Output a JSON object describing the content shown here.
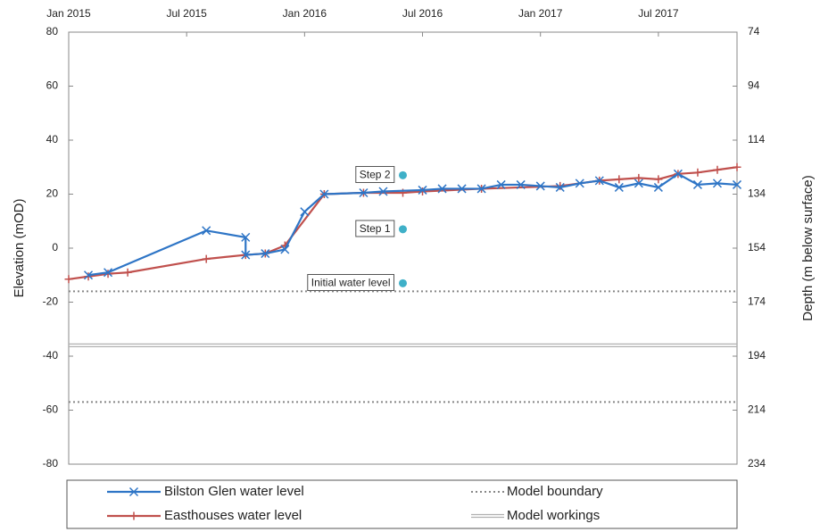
{
  "chart_data": {
    "type": "line",
    "y_label": "Elevation (mOD)",
    "y2_label": "Depth (m below surface)",
    "xlim": [
      "2015-01",
      "2017-11"
    ],
    "xticks": [
      {
        "value": "2015-01",
        "label": "Jan 2015"
      },
      {
        "value": "2015-07",
        "label": "Jul 2015"
      },
      {
        "value": "2016-01",
        "label": "Jan 2016"
      },
      {
        "value": "2016-07",
        "label": "Jul 2016"
      },
      {
        "value": "2017-01",
        "label": "Jan 2017"
      },
      {
        "value": "2017-07",
        "label": "Jul 2017"
      }
    ],
    "ylim": [
      -80,
      80
    ],
    "yticks": [
      -80,
      -60,
      -40,
      -20,
      0,
      20,
      40,
      60,
      80
    ],
    "y2lim": [
      234,
      74
    ],
    "y2ticks": [
      74,
      94,
      114,
      134,
      154,
      174,
      194,
      214,
      234
    ],
    "grid": false,
    "series": [
      {
        "name": "Easthouses water level",
        "color": "#c0504d",
        "marker": "plus",
        "x": [
          "2015-01",
          "2015-02",
          "2015-03",
          "2015-04",
          "2015-08",
          "2015-10",
          "2015-11",
          "2015-12",
          "2016-02",
          "2016-04",
          "2016-06",
          "2016-07",
          "2016-10",
          "2017-02",
          "2017-04",
          "2017-05",
          "2017-06",
          "2017-07",
          "2017-08",
          "2017-09",
          "2017-10",
          "2017-11"
        ],
        "values": [
          -11.5,
          -10.5,
          -9.5,
          -9,
          -4,
          -2.5,
          -2,
          1,
          20,
          20.5,
          20.5,
          21,
          22,
          23,
          25,
          25.5,
          26,
          25.5,
          27.5,
          28,
          29,
          30
        ]
      },
      {
        "name": "Bilston Glen water level",
        "color": "#2e75c6",
        "marker": "cross",
        "x": [
          "2015-02",
          "2015-03",
          "2015-08",
          "2015-10",
          "2015-10",
          "2015-11",
          "2015-12",
          "2016-01",
          "2016-02",
          "2016-04",
          "2016-05",
          "2016-07",
          "2016-08",
          "2016-09",
          "2016-10",
          "2016-11",
          "2016-12",
          "2017-01",
          "2017-02",
          "2017-03",
          "2017-04",
          "2017-05",
          "2017-06",
          "2017-07",
          "2017-08",
          "2017-09",
          "2017-10",
          "2017-11"
        ],
        "values": [
          -10,
          -9,
          6.5,
          4,
          -2.5,
          -2,
          -0.5,
          13.5,
          20,
          20.5,
          21,
          21.5,
          22,
          22,
          22,
          23.5,
          23.5,
          23,
          22.5,
          24,
          25,
          22.5,
          24,
          22.5,
          27.5,
          23.5,
          24,
          23.5
        ]
      }
    ],
    "reference_lines": [
      {
        "name": "Model boundary",
        "color": "#888888",
        "style": "dotted",
        "values": [
          -16,
          -57
        ]
      },
      {
        "name": "Model workings",
        "color": "#b0b0b0",
        "style": "double",
        "values": [
          -36
        ]
      }
    ],
    "annotations": [
      {
        "text": "Step 2",
        "x": "2016-06",
        "y": 27
      },
      {
        "text": "Step 1",
        "x": "2016-06",
        "y": 7
      },
      {
        "text": "Initial water level",
        "x": "2016-06",
        "y": -13
      }
    ]
  }
}
